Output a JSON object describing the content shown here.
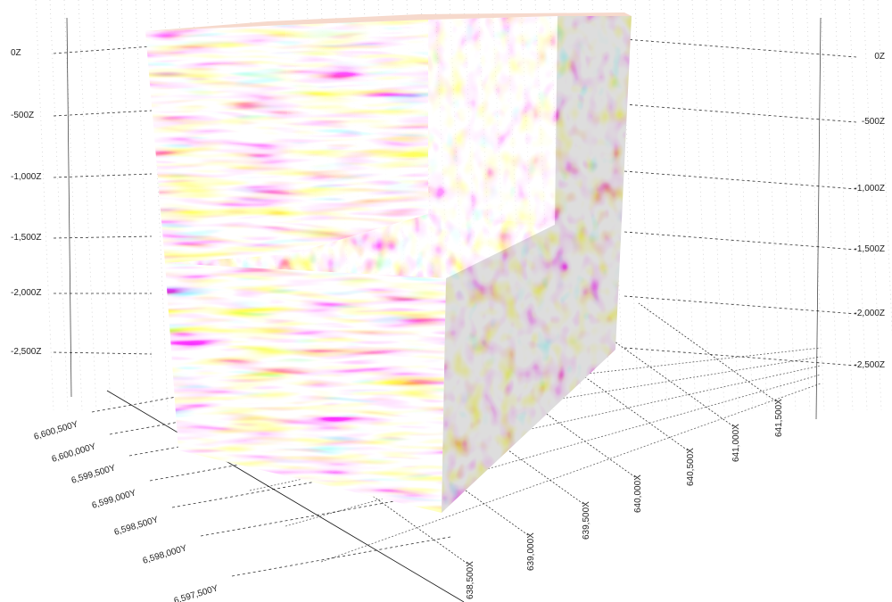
{
  "chart_data": {
    "type": "3d-volume",
    "grid": true,
    "colormap": [
      "#1a1a1a",
      "#9a9a9a",
      "#ffffff",
      "#f0a070",
      "#c8102e",
      "#8b0000"
    ],
    "z_axis": {
      "ticks": [
        "0Z",
        "-500Z",
        "-1,000Z",
        "-1,500Z",
        "-2,000Z",
        "-2,500Z"
      ]
    },
    "y_axis": {
      "ticks": [
        "6,600,500Y",
        "6,600,000Y",
        "6,599,500Y",
        "6,599,000Y",
        "6,598,500Y",
        "6,598,000Y",
        "6,597,500Y"
      ]
    },
    "x_axis": {
      "ticks": [
        "638,500X",
        "639,000X",
        "639,500X",
        "640,000X",
        "640,500X",
        "641,000X",
        "641,500X"
      ]
    }
  }
}
